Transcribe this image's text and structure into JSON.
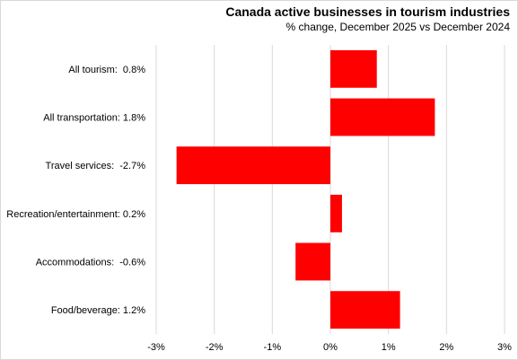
{
  "chart_data": {
    "type": "bar",
    "orientation": "horizontal",
    "title": "Canada active businesses  in tourism industries",
    "subtitle": "% change, December  2025 vs December  2024",
    "categories": [
      "All tourism:  0.8%",
      "All transportation: 1.8%",
      "Travel services:  -2.7%",
      "Recreation/entertainment: 0.2%",
      "Accommodations:  -0.6%",
      "Food/beverage: 1.2%"
    ],
    "values": [
      0.8,
      1.8,
      -2.65,
      0.2,
      -0.6,
      1.2
    ],
    "xlim": [
      -3,
      3
    ],
    "ticks": [
      -3,
      -2,
      -1,
      0,
      1,
      2,
      3
    ],
    "tick_labels": [
      "-3%",
      "-2%",
      "-1%",
      "0%",
      "1%",
      "2%",
      "3%"
    ],
    "grid": true,
    "bar_color": "#ff0000",
    "legend": "none"
  }
}
